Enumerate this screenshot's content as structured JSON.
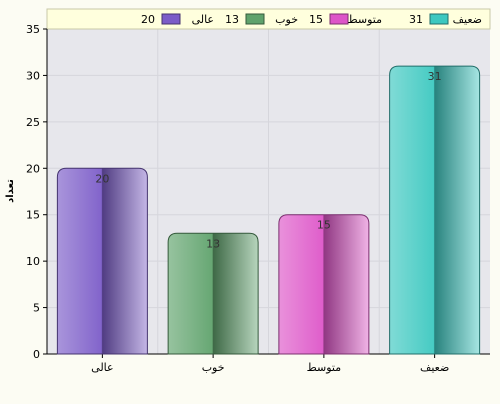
{
  "chart_data": {
    "type": "bar",
    "ylabel": "تعداد",
    "ylim": [
      0,
      35
    ],
    "yticks": [
      0,
      5,
      10,
      15,
      20,
      25,
      30,
      35
    ],
    "grid": true,
    "legend_position": "top",
    "categories": [
      "عالی",
      "خوب",
      "متوسط",
      "ضعیف"
    ],
    "values": [
      20,
      13,
      15,
      31
    ],
    "data_labels": [
      "20",
      "13",
      "15",
      "31"
    ],
    "colors": [
      "#7b5cc8",
      "#5fa26c",
      "#dd55c8",
      "#3cc8c0"
    ],
    "legend": [
      {
        "label": "عالی",
        "value": "20",
        "color": "#7b5cc8"
      },
      {
        "label": "خوب",
        "value": "13",
        "color": "#5fa26c"
      },
      {
        "label": "متوسط",
        "value": "15",
        "color": "#dd55c8"
      },
      {
        "label": "ضعیف",
        "value": "31",
        "color": "#3cc8c0"
      }
    ]
  }
}
